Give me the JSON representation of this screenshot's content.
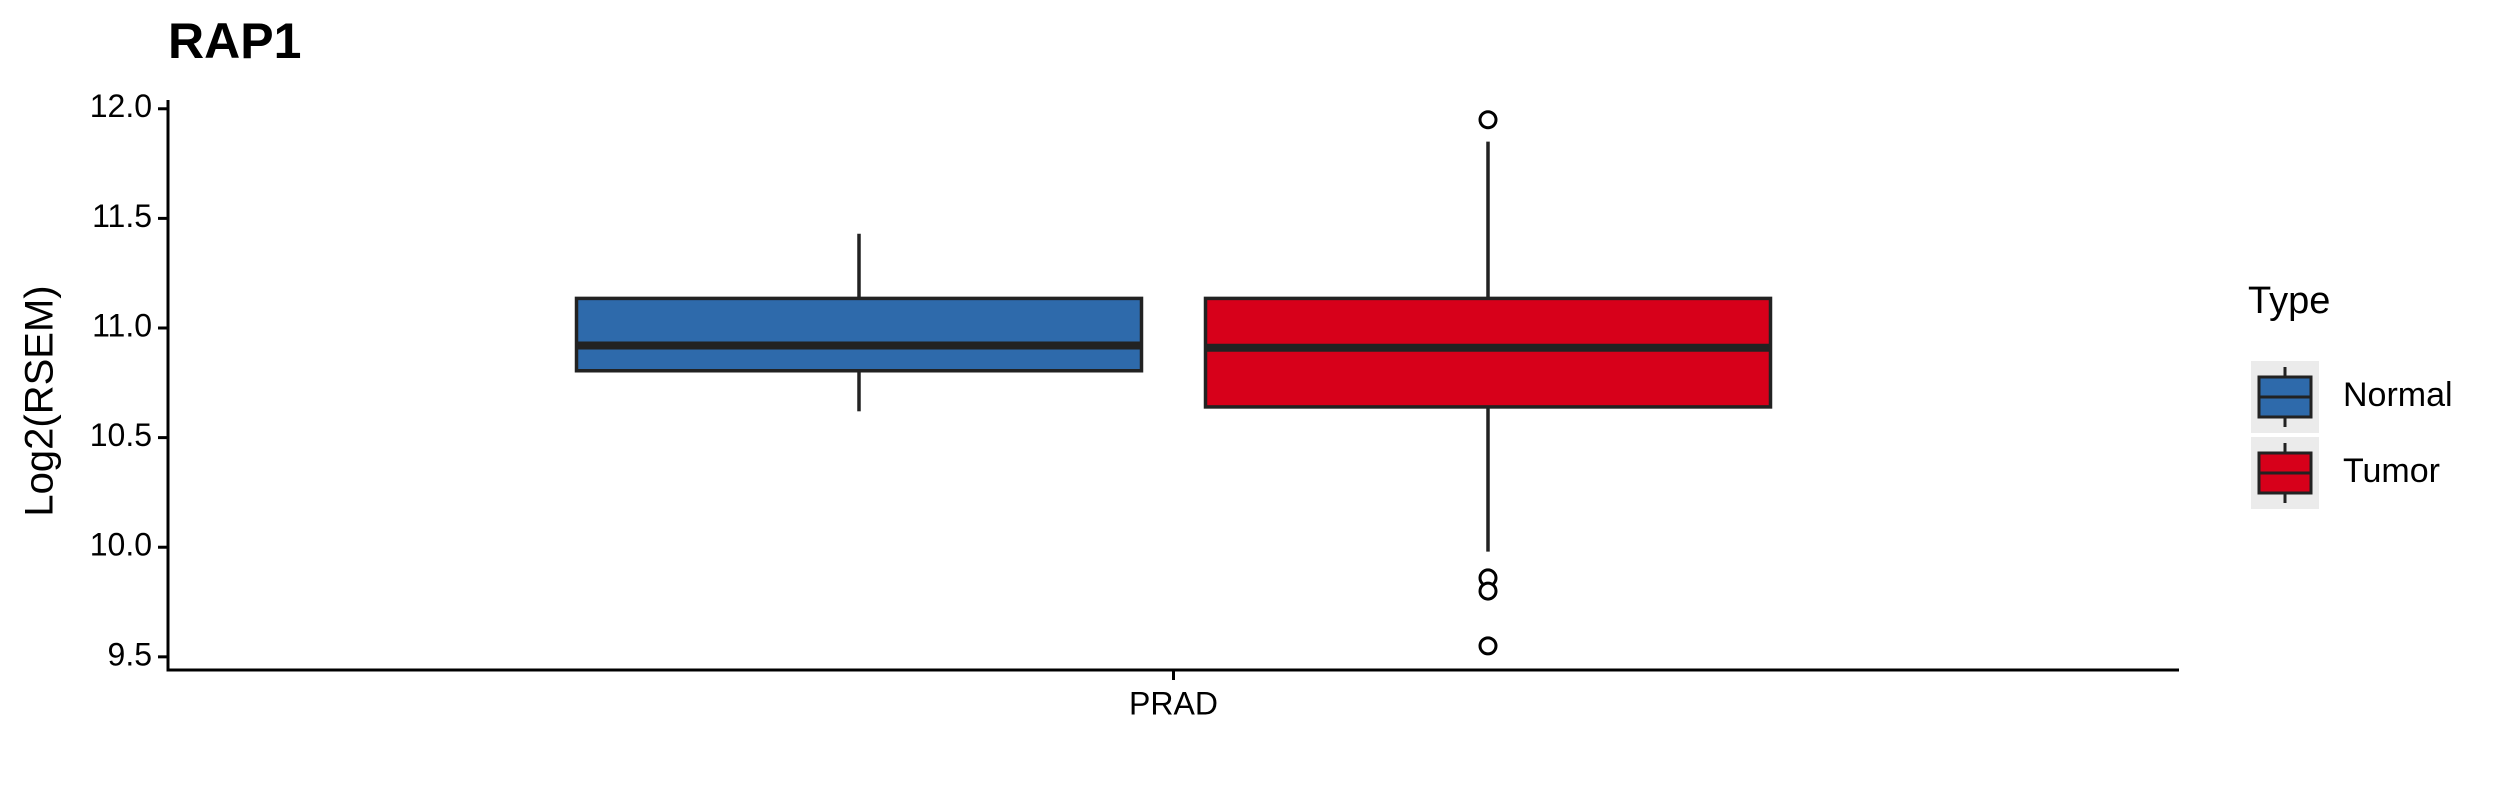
{
  "chart_data": {
    "type": "box",
    "title": "RAP1",
    "y_label": "Log2(RSEM)",
    "categories": [
      "PRAD"
    ],
    "legend_title": "Type",
    "series": [
      {
        "name": "Normal",
        "color": "#2e6aab",
        "whislo": [
          10.62
        ],
        "q1": [
          10.805
        ],
        "med": [
          10.92
        ],
        "q3": [
          11.135
        ],
        "whishi": [
          11.43
        ],
        "outliers": [
          []
        ]
      },
      {
        "name": "Tumor",
        "color": "#d7001a",
        "whislo": [
          9.98
        ],
        "q1": [
          10.64
        ],
        "med": [
          10.91
        ],
        "q3": [
          11.135
        ],
        "whishi": [
          11.85
        ],
        "outliers": [
          [
            11.95,
            9.86,
            9.8,
            9.55
          ]
        ]
      }
    ],
    "ylim": [
      9.44,
      12.04
    ],
    "yticks": [
      9.5,
      {
        "value": 10,
        "label": "10.0"
      },
      10.5,
      {
        "value": 11,
        "label": "11.0"
      },
      11.5,
      {
        "value": 12,
        "label": "12.0"
      }
    ]
  }
}
